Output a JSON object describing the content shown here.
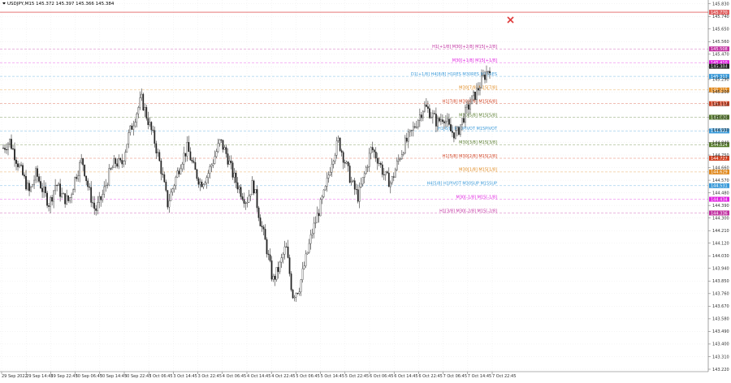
{
  "header": {
    "symbol_info": "USDJPY,M15  145.372 145.397 145.366 145.384"
  },
  "chart_data": {
    "type": "candlestick",
    "symbol": "USDJPY",
    "timeframe": "M15",
    "ohlc_header": {
      "open": 145.372,
      "high": 145.397,
      "low": 145.366,
      "close": 145.384
    },
    "ylim": [
      143.22,
      145.84
    ],
    "y_ticks": [
      "145.830",
      "145.740",
      "145.650",
      "145.560",
      "145.470",
      "145.380",
      "145.290",
      "145.200",
      "145.110",
      "145.020",
      "144.930",
      "144.840",
      "144.750",
      "144.660",
      "144.570",
      "144.480",
      "144.390",
      "144.300",
      "144.210",
      "144.120",
      "144.030",
      "143.940",
      "143.850",
      "143.760",
      "143.670",
      "143.580",
      "143.490",
      "143.400",
      "143.310",
      "143.220"
    ],
    "x_ticks": [
      "29 Sep 2022",
      "29 Sep 14:45",
      "29 Sep 22:45",
      "30 Sep 06:45",
      "30 Sep 14:45",
      "30 Sep 22:45",
      "3 Oct 06:45",
      "3 Oct 14:45",
      "3 Oct 22:45",
      "4 Oct 06:45",
      "4 Oct 14:45",
      "4 Oct 22:45",
      "5 Oct 06:45",
      "5 Oct 14:45",
      "5 Oct 22:45",
      "6 Oct 06:45",
      "6 Oct 14:45",
      "6 Oct 22:45",
      "7 Oct 06:45",
      "7 Oct 14:45",
      "7 Oct 22:45"
    ],
    "grid": true,
    "close_series": [
      144.8,
      144.85,
      144.72,
      144.6,
      144.48,
      144.62,
      144.5,
      144.4,
      144.55,
      144.45,
      144.42,
      144.6,
      144.72,
      144.5,
      144.35,
      144.45,
      144.6,
      144.7,
      144.68,
      144.88,
      145.02,
      145.15,
      145.0,
      144.85,
      144.65,
      144.4,
      144.55,
      144.7,
      144.8,
      144.65,
      144.55,
      144.6,
      144.72,
      144.85,
      144.75,
      144.6,
      144.5,
      144.42,
      144.55,
      144.3,
      144.1,
      143.85,
      143.95,
      144.1,
      143.75,
      143.8,
      144.0,
      144.2,
      144.35,
      144.5,
      144.72,
      144.85,
      144.7,
      144.55,
      144.45,
      144.62,
      144.8,
      144.72,
      144.6,
      144.55,
      144.7,
      144.82,
      144.9,
      145.0,
      145.1,
      145.05,
      144.98,
      145.03,
      144.92,
      144.9,
      145.02,
      145.12,
      145.2,
      145.3,
      145.38
    ],
    "levels": [
      {
        "price": 145.77,
        "label": "",
        "color": "#e06060",
        "tag": "145.770",
        "style": "solid"
      },
      {
        "price": 145.508,
        "label": "H1[+1/8] M30[+2/8] M15[+2/8]",
        "color": "#c030a0",
        "tag": "145.508",
        "style": "dash"
      },
      {
        "price": 145.41,
        "label": "M30[+1/8] M15[+1/8]",
        "color": "#e020e0",
        "tag": "145.410",
        "style": "dash"
      },
      {
        "price": 145.384,
        "label": "",
        "color": "#222222",
        "tag": "145.384",
        "style": "none"
      },
      {
        "price": 145.312,
        "label": "D1[+1/8] H4[8/8] H1RES M30RES M15RES",
        "color": "#3a9ad9",
        "tag": "145.312",
        "style": "dash"
      },
      {
        "price": 145.215,
        "label": "M30[7/8] M15[7/8]",
        "color": "#e08a20",
        "tag": "145.215",
        "style": "dash"
      },
      {
        "price": 145.117,
        "label": "H1[7/8] M30[6/8] M15[6/8]",
        "color": "#d04020",
        "tag": "145.117",
        "style": "dash"
      },
      {
        "price": 145.02,
        "label": "M30[5/8] M15[5/8]",
        "color": "#557a2a",
        "tag": "145.020",
        "style": "dash"
      },
      {
        "price": 144.922,
        "label": "H1[6/8] M30PIVOT M15PIVOT",
        "color": "#3a9ad9",
        "tag": "144.922",
        "style": "dash"
      },
      {
        "price": 144.824,
        "label": "M30[3/8] M15[3/8]",
        "color": "#557a2a",
        "tag": "144.824",
        "style": "dash"
      },
      {
        "price": 144.727,
        "label": "H1[5/8] M30[2/8] M15[2/8]",
        "color": "#d04020",
        "tag": "144.727",
        "style": "dash"
      },
      {
        "price": 144.629,
        "label": "M30[1/8] M15[1/8]",
        "color": "#e08a20",
        "tag": "144.629",
        "style": "dash"
      },
      {
        "price": 144.531,
        "label": "H4[5/8] H1PIVOT M30SUP M15SUP",
        "color": "#3a9ad9",
        "tag": "144.531",
        "style": "dash"
      },
      {
        "price": 144.434,
        "label": "M30[-1/8] M15[-1/8]",
        "color": "#e020e0",
        "tag": "144.434",
        "style": "dash"
      },
      {
        "price": 144.336,
        "label": "H1[3/8] M30[-2/8] M15[-2/8]",
        "color": "#c030a0",
        "tag": "144.336",
        "style": "dash"
      }
    ],
    "colors": {
      "candle": "#222222",
      "grid": "#e6e6e6",
      "axis": "#666666",
      "marker": "#e04040"
    }
  }
}
